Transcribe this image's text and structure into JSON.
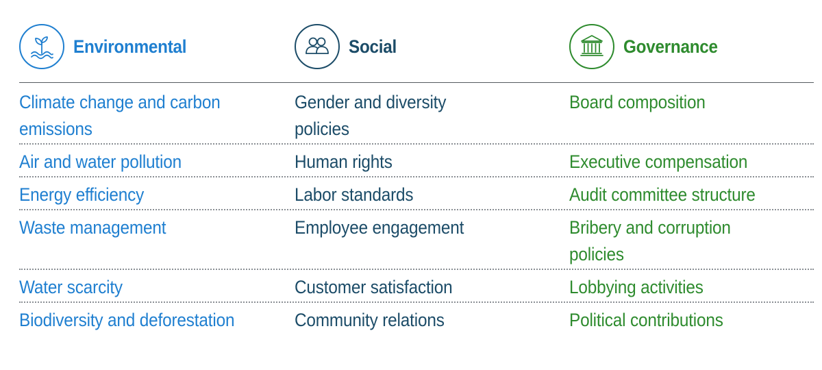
{
  "colors": {
    "environmental": "#1f7fd0",
    "social": "#1c4c68",
    "governance": "#2e8b2e",
    "divider": "#555a5f",
    "dotted_rule": "#8a8f94"
  },
  "columns": [
    {
      "key": "environmental",
      "heading": "Environmental",
      "icon": "plant-sprout-over-water-icon"
    },
    {
      "key": "social",
      "heading": "Social",
      "icon": "people-group-icon"
    },
    {
      "key": "governance",
      "heading": "Governance",
      "icon": "government-building-icon"
    }
  ],
  "rows": [
    {
      "environmental": [
        "Climate change and carbon",
        "emissions"
      ],
      "social": [
        "Gender and diversity",
        "policies"
      ],
      "governance": [
        "Board composition"
      ]
    },
    {
      "environmental": [
        "Air and water pollution"
      ],
      "social": [
        "Human rights"
      ],
      "governance": [
        "Executive compensation"
      ]
    },
    {
      "environmental": [
        "Energy efficiency"
      ],
      "social": [
        "Labor standards"
      ],
      "governance": [
        "Audit committee structure"
      ]
    },
    {
      "environmental": [
        "Waste management"
      ],
      "social": [
        "Employee engagement"
      ],
      "governance": [
        "Bribery and corruption",
        "policies"
      ]
    },
    {
      "environmental": [
        "Water scarcity"
      ],
      "social": [
        "Customer satisfaction"
      ],
      "governance": [
        "Lobbying activities"
      ]
    },
    {
      "environmental": [
        "Biodiversity and deforestation"
      ],
      "social": [
        "Community relations"
      ],
      "governance": [
        "Political contributions"
      ]
    }
  ]
}
